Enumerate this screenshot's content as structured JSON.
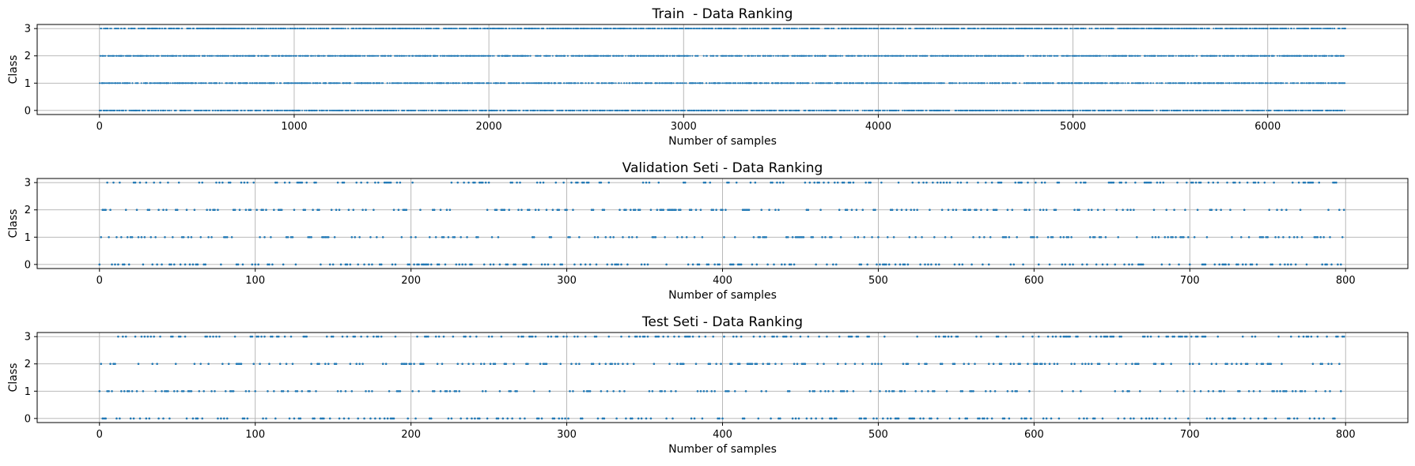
{
  "chart_data": [
    {
      "type": "scatter",
      "title": "Train  - Data Ranking",
      "xlabel": "Number of samples",
      "ylabel": "Class",
      "xlim": [
        -320,
        6720
      ],
      "ylim": [
        -0.15,
        3.15
      ],
      "xticks": [
        0,
        1000,
        2000,
        3000,
        4000,
        5000,
        6000
      ],
      "yticks": [
        0,
        1,
        2,
        3
      ],
      "grid": true,
      "color": "#1f77b4",
      "n_samples": 6400,
      "class_values": [
        0,
        1,
        2,
        3
      ]
    },
    {
      "type": "scatter",
      "title": "Validation Seti - Data Ranking",
      "xlabel": "Number of samples",
      "ylabel": "Class",
      "xlim": [
        -40,
        840
      ],
      "ylim": [
        -0.15,
        3.15
      ],
      "xticks": [
        0,
        100,
        200,
        300,
        400,
        500,
        600,
        700,
        800
      ],
      "yticks": [
        0,
        1,
        2,
        3
      ],
      "grid": true,
      "color": "#1f77b4",
      "n_samples": 800,
      "class_values": [
        0,
        1,
        2,
        3
      ]
    },
    {
      "type": "scatter",
      "title": "Test Seti - Data Ranking",
      "xlabel": "Number of samples",
      "ylabel": "Class",
      "xlim": [
        -40,
        840
      ],
      "ylim": [
        -0.15,
        3.15
      ],
      "xticks": [
        0,
        100,
        200,
        300,
        400,
        500,
        600,
        700,
        800
      ],
      "yticks": [
        0,
        1,
        2,
        3
      ],
      "grid": true,
      "color": "#1f77b4",
      "n_samples": 800,
      "class_values": [
        0,
        1,
        2,
        3
      ]
    }
  ]
}
